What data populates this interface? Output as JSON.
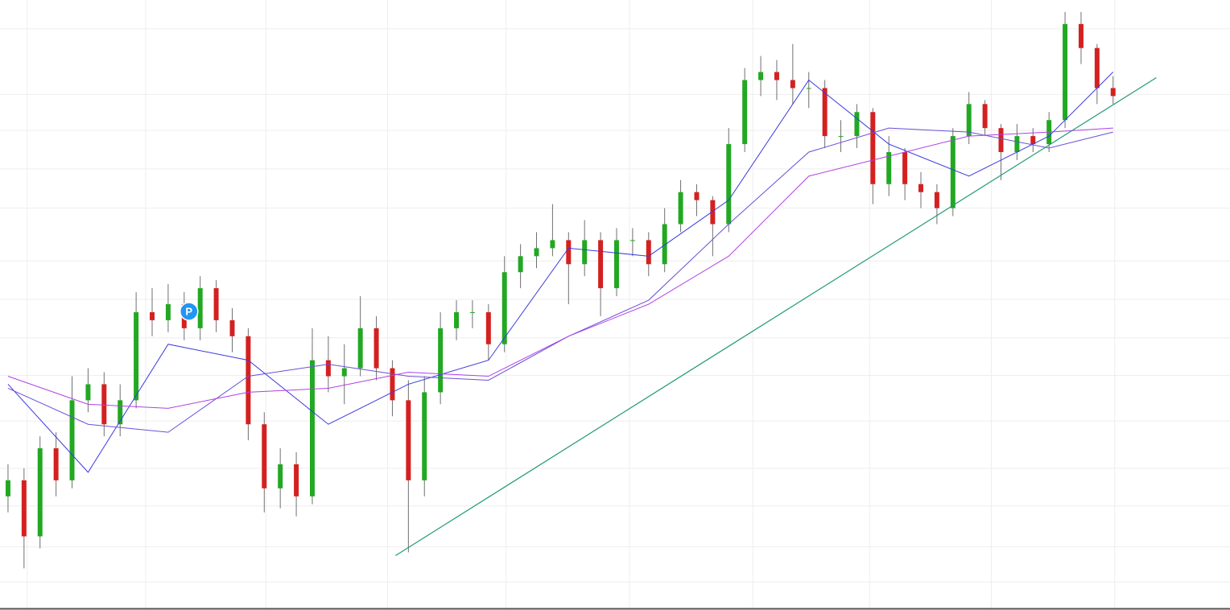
{
  "chart_data": {
    "type": "candlestick",
    "xlim": [
      -0.5,
      76.3
    ],
    "ylim": [
      0,
      760
    ],
    "xticks": [
      1.2,
      8.6,
      16.1,
      23.7,
      31.1,
      38.8,
      46.5,
      53.8,
      61.4,
      69.1
    ],
    "yticks": [
      724,
      642,
      597,
      549,
      500,
      434,
      386,
      338,
      291,
      234,
      175,
      128,
      77,
      33
    ],
    "grid": true,
    "up_color": "#22a822",
    "down_color": "#d42020",
    "wick_color": "#707070",
    "open": [
      140,
      160,
      90,
      200,
      160,
      260,
      280,
      230,
      260,
      370,
      360,
      380,
      350,
      400,
      360,
      340,
      230,
      150,
      180,
      140,
      310,
      290,
      300,
      350,
      300,
      260,
      160,
      270,
      350,
      370,
      370,
      330,
      420,
      440,
      450,
      460,
      430,
      460,
      400,
      460,
      460,
      430,
      480,
      520,
      510,
      480,
      580,
      660,
      670,
      660,
      650,
      650,
      590,
      590,
      620,
      530,
      570,
      530,
      520,
      500,
      590,
      630,
      600,
      570,
      590,
      580,
      610,
      730,
      700,
      650
    ],
    "high": [
      180,
      175,
      215,
      220,
      290,
      300,
      295,
      280,
      395,
      400,
      405,
      395,
      415,
      410,
      375,
      350,
      245,
      200,
      195,
      350,
      340,
      330,
      390,
      365,
      310,
      285,
      290,
      370,
      385,
      385,
      380,
      440,
      455,
      470,
      505,
      470,
      485,
      470,
      475,
      475,
      470,
      500,
      535,
      530,
      515,
      600,
      675,
      690,
      685,
      705,
      670,
      660,
      610,
      630,
      625,
      590,
      575,
      545,
      530,
      600,
      645,
      635,
      605,
      605,
      600,
      620,
      745,
      745,
      705,
      665
    ],
    "low": [
      120,
      50,
      75,
      140,
      150,
      245,
      215,
      215,
      250,
      340,
      345,
      335,
      335,
      345,
      320,
      210,
      120,
      125,
      115,
      130,
      270,
      255,
      290,
      285,
      240,
      70,
      140,
      255,
      335,
      350,
      310,
      320,
      400,
      425,
      440,
      380,
      415,
      365,
      390,
      440,
      415,
      420,
      470,
      490,
      440,
      470,
      570,
      640,
      635,
      630,
      625,
      575,
      570,
      575,
      505,
      515,
      510,
      500,
      480,
      490,
      580,
      590,
      535,
      560,
      570,
      570,
      600,
      680,
      630,
      630
    ],
    "close": [
      160,
      90,
      200,
      160,
      260,
      280,
      230,
      260,
      370,
      360,
      380,
      350,
      400,
      360,
      340,
      230,
      150,
      180,
      140,
      310,
      290,
      300,
      350,
      300,
      260,
      160,
      270,
      350,
      370,
      370,
      330,
      420,
      440,
      450,
      460,
      430,
      460,
      400,
      460,
      460,
      430,
      480,
      520,
      510,
      480,
      580,
      660,
      670,
      660,
      650,
      650,
      590,
      590,
      620,
      530,
      570,
      530,
      520,
      500,
      590,
      630,
      600,
      570,
      590,
      580,
      610,
      730,
      700,
      650,
      640
    ],
    "series": [
      {
        "color": "#3a3ae0",
        "x": [
          0,
          5,
          10,
          15,
          20,
          25,
          30,
          35,
          40,
          45,
          50,
          55,
          60,
          65,
          69
        ],
        "values": [
          280,
          170,
          330,
          310,
          230,
          280,
          310,
          450,
          440,
          510,
          660,
          580,
          540,
          590,
          670
        ]
      },
      {
        "color": "#6a4fd8",
        "x": [
          0,
          5,
          10,
          15,
          20,
          25,
          30,
          35,
          40,
          45,
          50,
          55,
          60,
          65,
          69
        ],
        "values": [
          275,
          230,
          220,
          290,
          305,
          290,
          285,
          340,
          385,
          480,
          570,
          600,
          595,
          575,
          595
        ]
      },
      {
        "color": "#b040e8",
        "x": [
          0,
          5,
          10,
          15,
          20,
          25,
          30,
          35,
          40,
          45,
          50,
          55,
          60,
          65,
          69
        ],
        "values": [
          290,
          255,
          250,
          270,
          275,
          295,
          290,
          340,
          380,
          440,
          540,
          565,
          590,
          595,
          600
        ]
      }
    ],
    "trendline": {
      "color": "#1f9a73",
      "x": [
        24.2,
        71.7
      ],
      "values": [
        66,
        663
      ]
    },
    "annotations": [
      {
        "text": "P",
        "x": 11.3,
        "value": 371,
        "color": "#2196f3"
      }
    ]
  }
}
